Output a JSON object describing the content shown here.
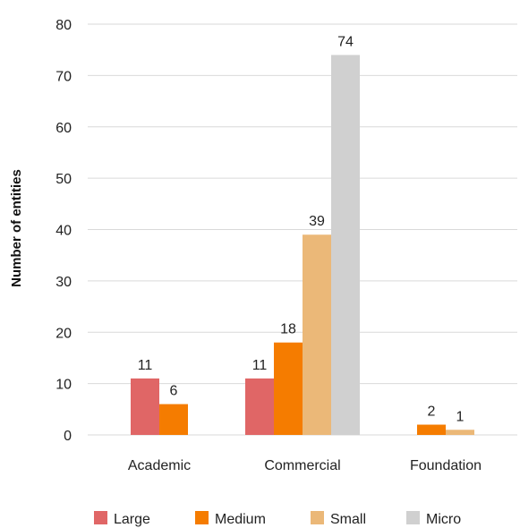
{
  "chart_data": {
    "type": "bar",
    "title": "",
    "xlabel": "",
    "ylabel": "Number of entities",
    "ylim": [
      0,
      80
    ],
    "yticks": [
      0,
      10,
      20,
      30,
      40,
      50,
      60,
      70,
      80
    ],
    "grid": "horizontal",
    "legend_position": "bottom",
    "categories": [
      "Academic",
      "Commercial",
      "Foundation"
    ],
    "series": [
      {
        "name": "Large",
        "color": "#e06666",
        "values": [
          11,
          11,
          null
        ]
      },
      {
        "name": "Medium",
        "color": "#f57c00",
        "values": [
          6,
          18,
          2
        ]
      },
      {
        "name": "Small",
        "color": "#ebb878",
        "values": [
          null,
          39,
          1
        ]
      },
      {
        "name": "Micro",
        "color": "#d0d0d0",
        "values": [
          null,
          74,
          null
        ]
      }
    ]
  }
}
